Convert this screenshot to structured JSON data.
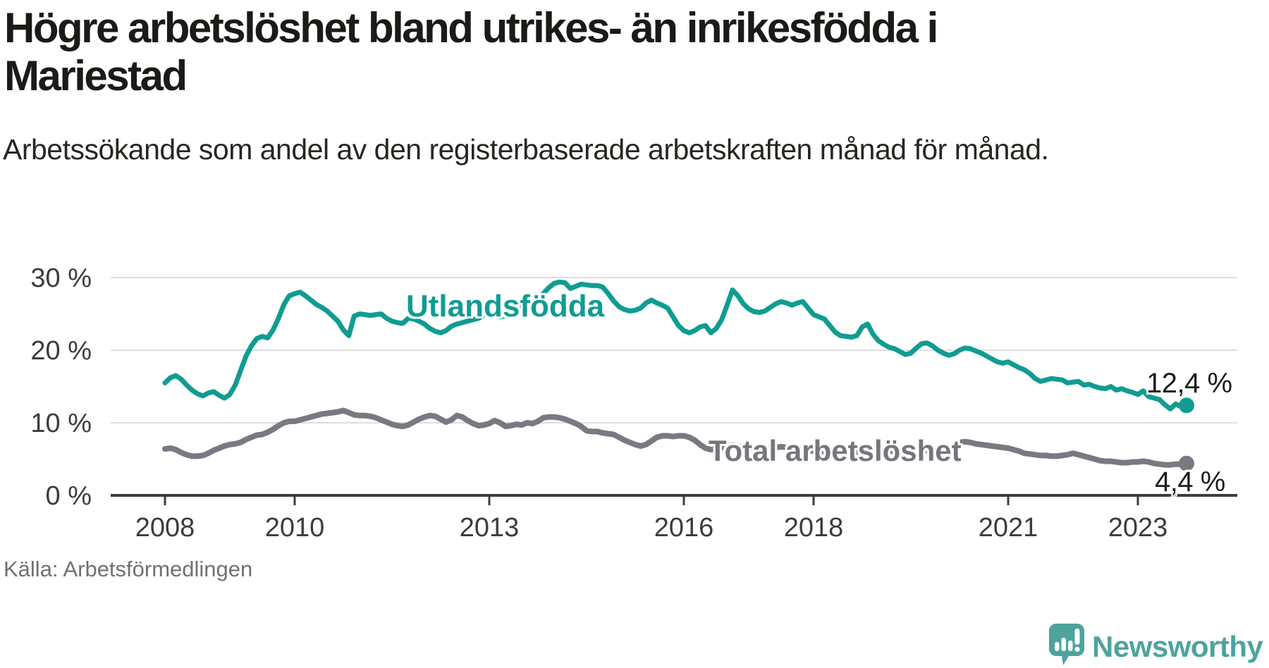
{
  "title": "Högre arbetslöshet bland utrikes- än inrikesfödda i Mariestad",
  "subtitle": "Arbetssökande som andel av den registerbaserade arbetskraften månad för månad.",
  "source": "Källa: Arbetsförmedlingen",
  "logo": {
    "text": "Newsworthy",
    "icon": "newsworthy-speech-bubble-barchart-icon"
  },
  "colors": {
    "foreign_born_line": "#109c92",
    "total_line": "#7a7880",
    "grid": "#dedede",
    "axis": "#3d3d3d",
    "title_text": "#1b1a17",
    "source_text": "#717171",
    "logo_teal": "#4ca49d"
  },
  "chart_data": {
    "type": "line",
    "title": "Högre arbetslöshet bland utrikes- än inrikesfödda i Mariestad",
    "subtitle": "Arbetssökande som andel av den registerbaserade arbetskraften månad för månad.",
    "unit": "%",
    "frequency": "monthly",
    "x_start": "2008-01",
    "x_end": "2023-10",
    "x_tick_years": [
      2008,
      2010,
      2013,
      2016,
      2018,
      2021,
      2023
    ],
    "y_ticks": [
      {
        "value": 0,
        "label": "0 %"
      },
      {
        "value": 10,
        "label": "10 %"
      },
      {
        "value": 20,
        "label": "20 %"
      },
      {
        "value": 30,
        "label": "30 %"
      }
    ],
    "ylim": [
      0,
      33
    ],
    "grid": true,
    "legend_position": "inline-labels",
    "series": [
      {
        "name": "Utlandsfödda",
        "color": "#109c92",
        "end_value": 12.4,
        "end_label": "12,4 %",
        "values": [
          15.5,
          16.2,
          16.5,
          16.0,
          15.2,
          14.5,
          14.0,
          13.7,
          14.1,
          14.3,
          13.8,
          13.4,
          13.9,
          15.2,
          17.2,
          19.2,
          20.6,
          21.6,
          21.9,
          21.7,
          22.8,
          24.4,
          26.3,
          27.5,
          27.8,
          28.0,
          27.5,
          26.9,
          26.3,
          25.9,
          25.4,
          24.7,
          24.0,
          22.8,
          22.0,
          24.7,
          25.0,
          24.9,
          24.8,
          24.9,
          25.0,
          24.4,
          24.0,
          23.8,
          23.7,
          24.4,
          24.3,
          24.0,
          23.6,
          23.0,
          22.6,
          22.4,
          22.7,
          23.3,
          23.6,
          23.8,
          24.0,
          24.2,
          24.4,
          24.8,
          25.0,
          24.8,
          24.6,
          24.7,
          25.2,
          25.8,
          26.2,
          26.5,
          26.7,
          27.0,
          27.8,
          28.6,
          29.2,
          29.4,
          29.3,
          28.5,
          28.8,
          29.1,
          29.0,
          28.9,
          28.9,
          28.7,
          27.8,
          26.8,
          26.0,
          25.6,
          25.4,
          25.5,
          25.8,
          26.5,
          26.9,
          26.5,
          26.2,
          25.8,
          24.6,
          23.4,
          22.7,
          22.4,
          22.7,
          23.2,
          23.4,
          22.4,
          23.0,
          24.2,
          26.2,
          28.3,
          27.5,
          26.4,
          25.7,
          25.3,
          25.2,
          25.4,
          25.9,
          26.4,
          26.7,
          26.5,
          26.2,
          26.5,
          26.7,
          25.8,
          24.9,
          24.6,
          24.3,
          23.4,
          22.5,
          22.0,
          21.9,
          21.8,
          22.0,
          23.2,
          23.6,
          22.2,
          21.3,
          20.8,
          20.4,
          20.2,
          19.8,
          19.4,
          19.6,
          20.3,
          20.9,
          21.0,
          20.6,
          20.0,
          19.6,
          19.3,
          19.5,
          20.0,
          20.3,
          20.2,
          19.9,
          19.6,
          19.2,
          18.8,
          18.4,
          18.2,
          18.4,
          18.0,
          17.6,
          17.3,
          16.8,
          16.1,
          15.7,
          15.9,
          16.1,
          16.0,
          15.9,
          15.5,
          15.6,
          15.7,
          15.2,
          15.3,
          15.0,
          14.8,
          14.7,
          15.0,
          14.5,
          14.7,
          14.4,
          14.2,
          13.9,
          14.4,
          13.6,
          13.4,
          13.2,
          12.5,
          11.9,
          12.6,
          12.2,
          12.4
        ]
      },
      {
        "name": "Total arbetslöshet",
        "color": "#7a7880",
        "end_value": 4.4,
        "end_label": "4,4 %",
        "values": [
          6.4,
          6.5,
          6.3,
          5.9,
          5.6,
          5.4,
          5.4,
          5.5,
          5.8,
          6.2,
          6.5,
          6.8,
          7.0,
          7.1,
          7.3,
          7.7,
          8.0,
          8.3,
          8.4,
          8.7,
          9.1,
          9.6,
          10.0,
          10.2,
          10.2,
          10.4,
          10.6,
          10.8,
          11.0,
          11.2,
          11.3,
          11.4,
          11.5,
          11.7,
          11.4,
          11.1,
          11.0,
          11.0,
          10.9,
          10.7,
          10.4,
          10.1,
          9.8,
          9.6,
          9.5,
          9.7,
          10.1,
          10.5,
          10.8,
          11.0,
          10.9,
          10.5,
          10.1,
          10.4,
          11.0,
          10.8,
          10.3,
          9.9,
          9.6,
          9.7,
          9.9,
          10.3,
          10.0,
          9.5,
          9.6,
          9.8,
          9.7,
          10.0,
          9.9,
          10.2,
          10.7,
          10.8,
          10.8,
          10.7,
          10.5,
          10.2,
          9.9,
          9.5,
          8.9,
          8.8,
          8.8,
          8.6,
          8.5,
          8.4,
          8.0,
          7.6,
          7.3,
          7.0,
          6.8,
          7.0,
          7.5,
          8.0,
          8.2,
          8.2,
          8.1,
          8.2,
          8.2,
          8.0,
          7.6,
          7.0,
          6.5,
          6.3,
          6.4,
          6.6,
          6.8,
          6.9,
          6.8,
          6.7,
          6.6,
          6.5,
          6.4,
          6.4,
          6.5,
          6.6,
          6.7,
          6.6,
          6.5,
          6.4,
          6.3,
          6.2,
          6.1,
          6.0,
          5.9,
          5.8,
          5.7,
          5.7,
          5.8,
          5.9,
          5.9,
          5.8,
          5.8,
          5.9,
          6.0,
          6.0,
          6.1,
          6.1,
          6.2,
          6.3,
          6.5,
          6.4,
          6.3,
          6.2,
          6.3,
          6.4,
          6.5,
          6.6,
          6.9,
          7.3,
          7.4,
          7.3,
          7.1,
          7.0,
          6.9,
          6.8,
          6.7,
          6.6,
          6.5,
          6.3,
          6.1,
          5.8,
          5.7,
          5.6,
          5.5,
          5.5,
          5.4,
          5.4,
          5.5,
          5.6,
          5.8,
          5.6,
          5.4,
          5.2,
          5.0,
          4.8,
          4.7,
          4.7,
          4.6,
          4.5,
          4.5,
          4.6,
          4.6,
          4.7,
          4.6,
          4.4,
          4.3,
          4.2,
          4.2,
          4.3,
          4.3,
          4.4
        ]
      }
    ]
  }
}
